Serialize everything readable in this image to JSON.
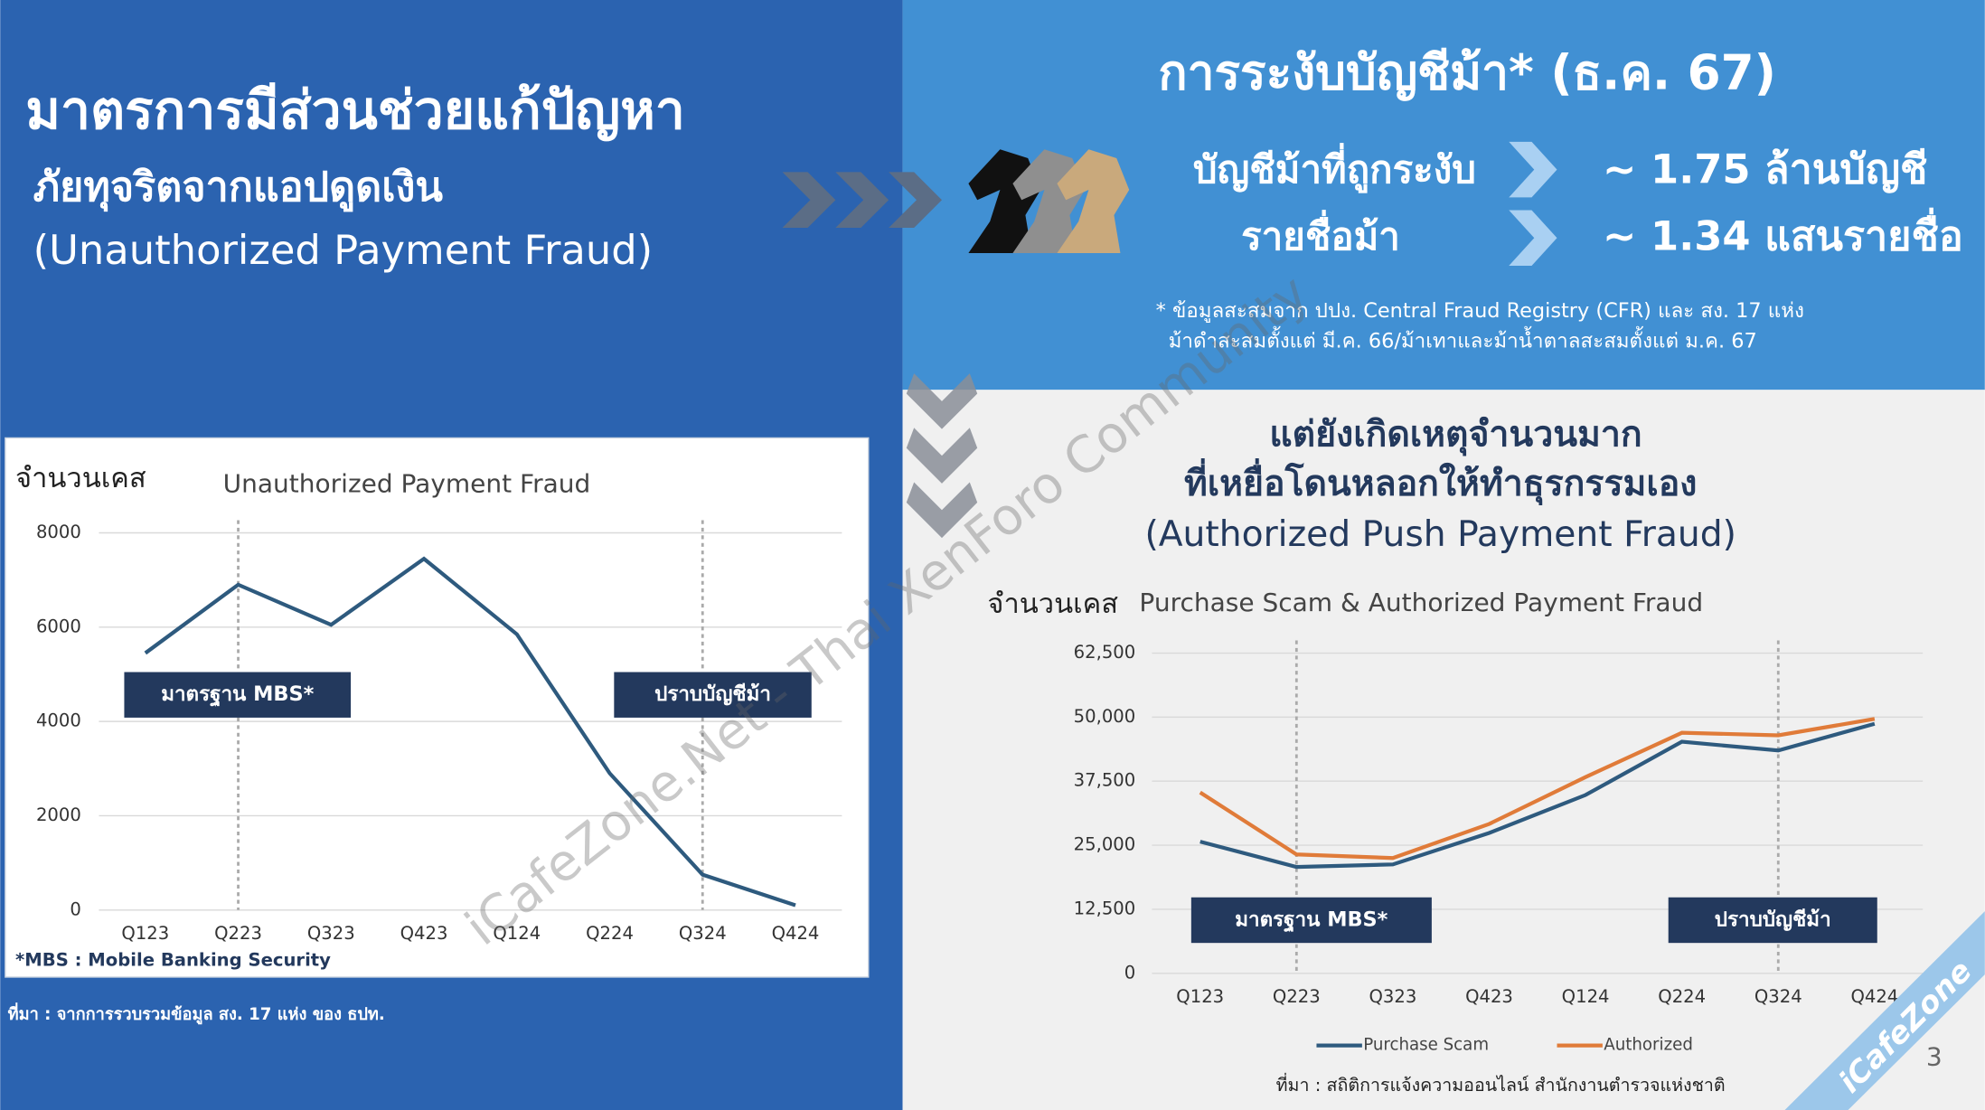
{
  "left_heading": {
    "title": "มาตรการมีส่วนช่วยแก้ปัญหา",
    "subtitle": "ภัยทุจริตจากแอปดูดเงิน",
    "english": "(Unauthorized Payment Fraud)"
  },
  "left_source": "ที่มา : จากการรวบรวมข้อมูล สง. 17 แห่ง ของ ธปท.",
  "right_top": {
    "title": "การระงับบัญชีม้า* (ธ.ค. 67)",
    "rows": [
      [
        "บัญชีม้าที่ถูกระงับ",
        "~ 1.75 ล้านบัญชี"
      ],
      [
        "รายชื่อม้า",
        "~ 1.34 แสนรายชื่อ"
      ]
    ],
    "footnote": [
      "* ข้อมูลสะสมจาก ปปง. Central Fraud Registry (CFR) และ สง. 17 แห่ง",
      "ม้าดำสะสมตั้งแต่ มี.ค. 66/ม้าเทาและม้าน้ำตาลสะสมตั้งแต่ ม.ค. 67"
    ]
  },
  "right_heading": {
    "lines": [
      "แต่ยังเกิดเหตุจำนวนมาก",
      "ที่เหยื่อโดนหลอกให้ทำธุรกรรมเอง"
    ],
    "english": "(Authorized Push Payment Fraud)"
  },
  "right_source": "ที่มา : สถิติการแจ้งความออนไลน์ สำนักงานตำรวจแห่งชาติ",
  "page_number": "3",
  "watermarks": [
    "iCafeZone.Net - Thai XenForo Community",
    "iCafeZone"
  ],
  "chart_data": [
    {
      "type": "line",
      "title": "Unauthorized Payment Fraud",
      "y_label": "จำนวนเคส",
      "categories": [
        "Q123",
        "Q223",
        "Q323",
        "Q423",
        "Q124",
        "Q224",
        "Q324",
        "Q424"
      ],
      "values": [
        5450,
        6900,
        6050,
        7450,
        5850,
        2900,
        750,
        100
      ],
      "color": "#2e5a7e",
      "ylim": [
        0,
        8000
      ],
      "yticks": [
        0,
        2000,
        4000,
        6000,
        8000
      ],
      "grid": true,
      "reference_lines_at": [
        1,
        6
      ],
      "annotations": [
        "มาตรฐาน MBS*",
        "ปราบบัญชีม้า"
      ],
      "footnote": "*MBS : Mobile Banking Security"
    },
    {
      "type": "line",
      "title": "Purchase Scam & Authorized Payment Fraud",
      "y_label": "จำนวนเคส",
      "categories": [
        "Q123",
        "Q223",
        "Q323",
        "Q423",
        "Q124",
        "Q224",
        "Q324",
        "Q424"
      ],
      "series": [
        {
          "name": "Purchase Scam",
          "color": "#2e5a7e",
          "values": [
            25700,
            20750,
            21250,
            27400,
            34800,
            45200,
            43500,
            48700
          ]
        },
        {
          "name": "Authorized",
          "color": "#e07b39",
          "values": [
            35300,
            23200,
            22500,
            29150,
            38300,
            46950,
            46450,
            49650
          ]
        }
      ],
      "ylim": [
        0,
        62500
      ],
      "yticks": [
        0,
        {
          "value": 12500,
          "label": "12,500"
        },
        {
          "value": 25000,
          "label": "25,000"
        },
        {
          "value": 37500,
          "label": "37,500"
        },
        {
          "value": 50000,
          "label": "50,000"
        },
        {
          "value": 62500,
          "label": "62,500"
        }
      ],
      "grid": true,
      "reference_lines_at": [
        1,
        6
      ],
      "annotations": [
        "มาตรฐาน MBS*",
        "ปราบบัญชีม้า"
      ],
      "legend": "bottom"
    }
  ]
}
